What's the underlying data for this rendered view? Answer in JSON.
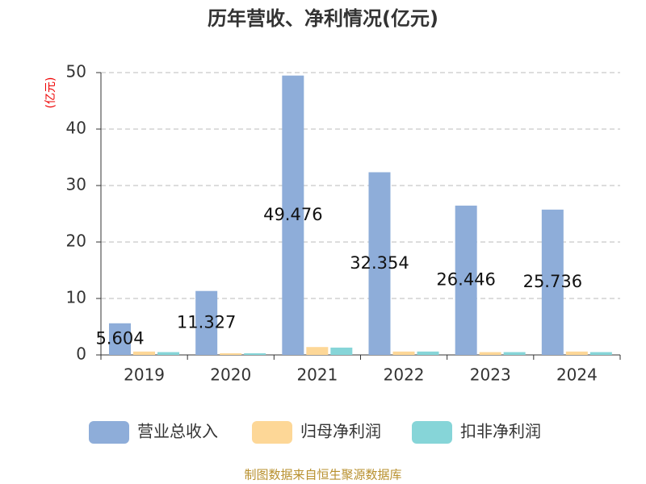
{
  "chart_data": {
    "type": "bar",
    "title": "历年营收、净利情况(亿元)",
    "y_label": "(亿元)",
    "source": "制图数据来自恒生聚源数据库",
    "categories": [
      "2019",
      "2020",
      "2021",
      "2022",
      "2023",
      "2024"
    ],
    "series": [
      {
        "name": "营业总收入",
        "color": "#8eadd9",
        "values": [
          5.604,
          11.327,
          49.476,
          32.354,
          26.446,
          25.736
        ],
        "labels": true
      },
      {
        "name": "归母净利润",
        "color": "#fdd797",
        "values": [
          0.6,
          0.3,
          1.4,
          0.6,
          0.5,
          0.6
        ]
      },
      {
        "name": "扣非净利润",
        "color": "#86d5d8",
        "values": [
          0.5,
          0.3,
          1.3,
          0.6,
          0.5,
          0.5
        ]
      }
    ],
    "ylim": [
      0,
      50
    ],
    "yticks": [
      0,
      10,
      20,
      30,
      40,
      50
    ],
    "grid": true
  }
}
